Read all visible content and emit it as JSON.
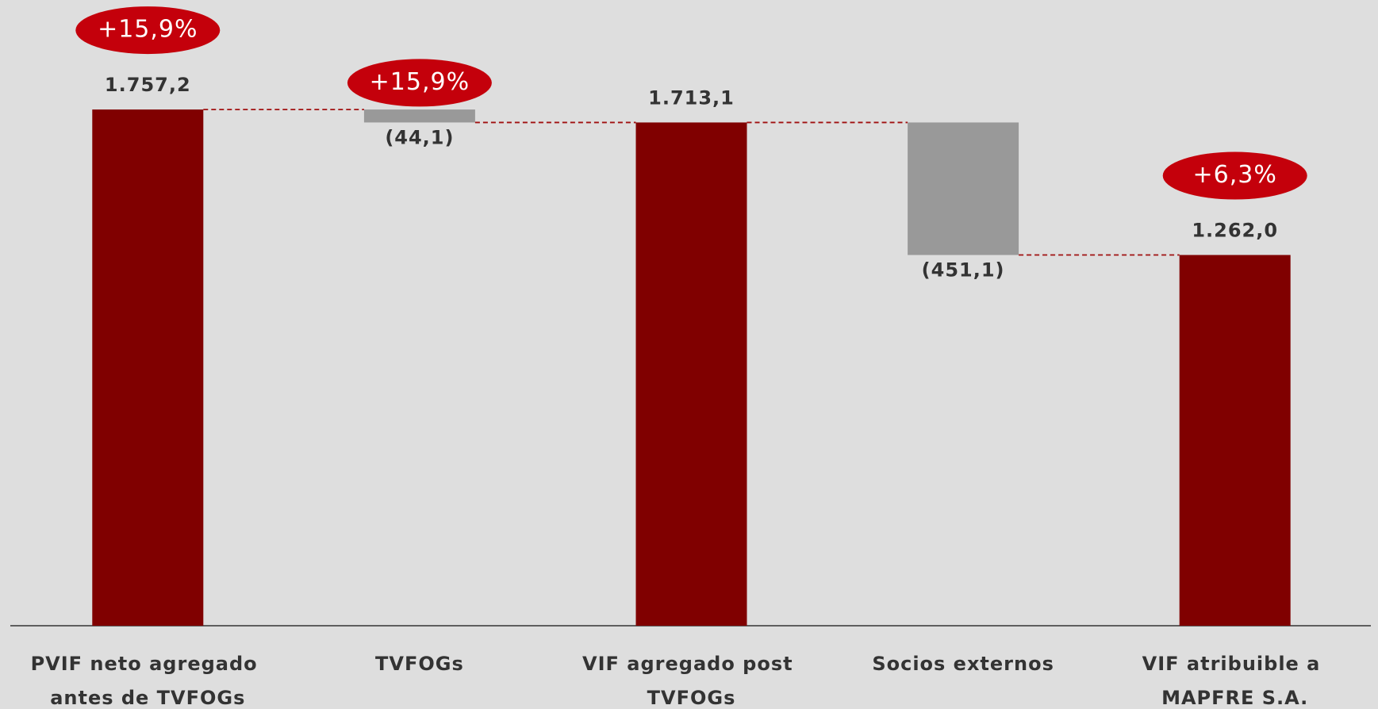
{
  "chart_data": {
    "type": "waterfall",
    "categories": [
      "PVIF neto agregado antes de TVFOGs",
      "TVFOGs",
      "VIF agregado post TVFOGs",
      "Socios externos",
      "VIF atribuible a MAPFRE S.A."
    ],
    "values": [
      1757.2,
      -44.1,
      1713.1,
      -451.1,
      1262.0
    ],
    "value_labels": [
      "1.757,2",
      "(44,1)",
      "1.713,1",
      "(451,1)",
      "1.262,0"
    ],
    "measures": [
      "total",
      "relative",
      "total",
      "relative",
      "total"
    ],
    "badges": [
      "+15,9%",
      "+15,9%",
      null,
      null,
      "+6,3%"
    ],
    "total_color": "#800000",
    "delta_color": "#999999",
    "badge_color": "#c4000b",
    "connector_color": "#a01010",
    "ylim": [
      0,
      2130
    ]
  }
}
